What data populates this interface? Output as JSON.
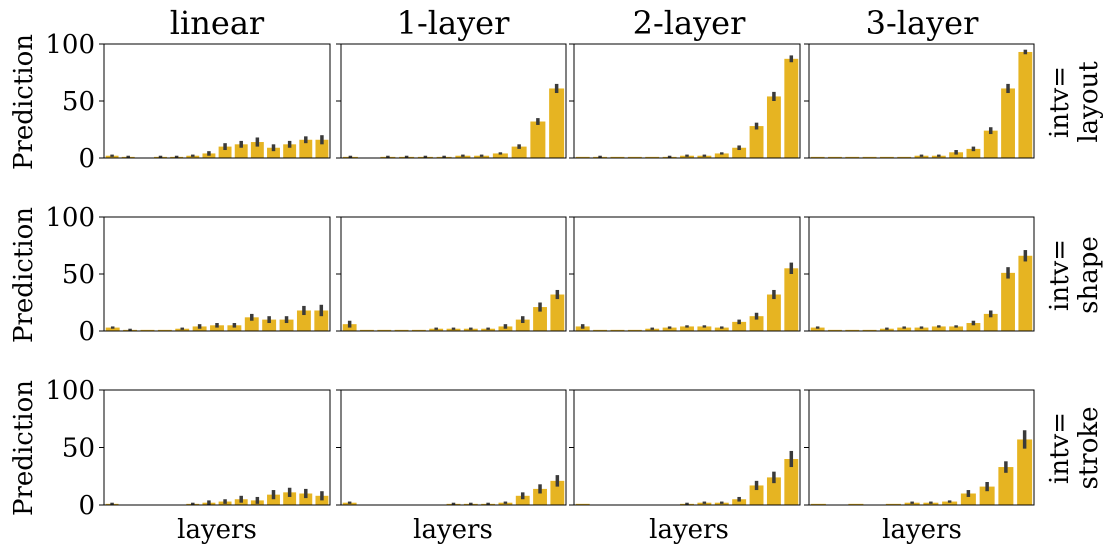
{
  "chart_data": {
    "type": "bar",
    "col_titles": [
      "linear",
      "1-layer",
      "2-layer",
      "3-layer"
    ],
    "row_labels": [
      {
        "line1": "intv=",
        "line2": "layout"
      },
      {
        "line1": "intv=",
        "line2": "shape"
      },
      {
        "line1": "intv=",
        "line2": "stroke"
      }
    ],
    "ylabel": "Prediction",
    "xlabel": "layers",
    "ylim": [
      0,
      100
    ],
    "yticks": [
      0,
      50,
      100
    ],
    "bar_color": "#E6B422",
    "err_color": "#3a3a3a",
    "panels": [
      [
        {
          "values": [
            2,
            1,
            0,
            1,
            1,
            2,
            4,
            10,
            12,
            14,
            9,
            12,
            16,
            16
          ],
          "err": [
            1,
            1,
            0,
            1,
            1,
            1,
            2,
            3,
            3,
            4,
            3,
            3,
            3,
            4
          ]
        },
        {
          "values": [
            1,
            0,
            1,
            1,
            1,
            1,
            2,
            2,
            4,
            10,
            32,
            61
          ],
          "err": [
            1,
            0,
            1,
            1,
            1,
            1,
            1,
            1,
            1,
            2,
            3,
            4
          ]
        },
        {
          "values": [
            1,
            1,
            1,
            1,
            1,
            1,
            2,
            2,
            4,
            9,
            28,
            54,
            87
          ],
          "err": [
            0,
            1,
            0,
            0,
            0,
            1,
            1,
            1,
            1,
            2,
            3,
            4,
            3
          ]
        },
        {
          "values": [
            1,
            1,
            1,
            1,
            1,
            1,
            2,
            2,
            5,
            8,
            24,
            61,
            93
          ],
          "err": [
            0,
            0,
            0,
            0,
            0,
            0,
            1,
            1,
            2,
            2,
            3,
            4,
            2
          ]
        }
      ],
      [
        {
          "values": [
            3,
            1,
            1,
            1,
            2,
            4,
            5,
            5,
            12,
            10,
            10,
            18,
            18
          ],
          "err": [
            1,
            1,
            0,
            0,
            1,
            2,
            2,
            2,
            3,
            3,
            3,
            4,
            5
          ]
        },
        {
          "values": [
            6,
            1,
            1,
            1,
            1,
            2,
            2,
            2,
            2,
            4,
            10,
            21,
            32
          ],
          "err": [
            3,
            0,
            0,
            0,
            0,
            1,
            1,
            1,
            1,
            2,
            3,
            4,
            4
          ]
        },
        {
          "values": [
            4,
            1,
            1,
            1,
            2,
            3,
            4,
            4,
            3,
            8,
            13,
            32,
            55
          ],
          "err": [
            2,
            0,
            0,
            0,
            1,
            1,
            1,
            1,
            1,
            2,
            3,
            4,
            5
          ]
        },
        {
          "values": [
            3,
            1,
            1,
            1,
            2,
            3,
            3,
            4,
            4,
            7,
            15,
            51,
            66
          ],
          "err": [
            1,
            0,
            0,
            0,
            1,
            1,
            1,
            1,
            1,
            2,
            3,
            5,
            5
          ]
        }
      ],
      [
        {
          "values": [
            1,
            0,
            0,
            0,
            0,
            1,
            2,
            3,
            5,
            4,
            9,
            11,
            10,
            8
          ],
          "err": [
            1,
            0,
            0,
            0,
            0,
            1,
            2,
            2,
            3,
            3,
            4,
            4,
            4,
            4
          ]
        },
        {
          "values": [
            2,
            0,
            0,
            0,
            0,
            0,
            1,
            1,
            1,
            2,
            8,
            14,
            21
          ],
          "err": [
            1,
            0,
            0,
            0,
            0,
            0,
            1,
            1,
            1,
            1,
            3,
            4,
            5
          ]
        },
        {
          "values": [
            1,
            0,
            0,
            0,
            0,
            0,
            1,
            2,
            2,
            5,
            17,
            24,
            40
          ],
          "err": [
            0,
            0,
            0,
            0,
            0,
            0,
            1,
            1,
            1,
            2,
            4,
            5,
            7
          ]
        },
        {
          "values": [
            1,
            0,
            1,
            0,
            1,
            2,
            2,
            3,
            10,
            16,
            33,
            57
          ],
          "err": [
            0,
            0,
            0,
            0,
            0,
            1,
            1,
            1,
            3,
            4,
            5,
            8
          ]
        }
      ]
    ]
  }
}
